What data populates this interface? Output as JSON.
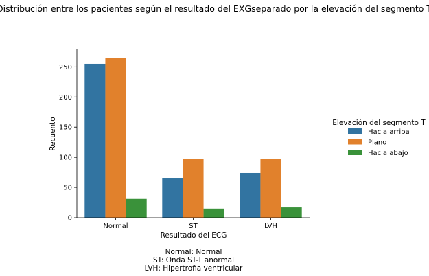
{
  "chart_data": {
    "type": "bar",
    "title": "Distribución entre los pacientes según el resultado del EXGseparado por la elevación del segmento T",
    "xlabel": "Resultado del ECG",
    "ylabel": "Recuento",
    "categories": [
      "Normal",
      "ST",
      "LVH"
    ],
    "series": [
      {
        "name": "Hacia arriba",
        "color": "#3274a1",
        "values": [
          255,
          66,
          74
        ]
      },
      {
        "name": "Plano",
        "color": "#e1812c",
        "values": [
          265,
          97,
          97
        ]
      },
      {
        "name": "Hacia abajo",
        "color": "#3a923a",
        "values": [
          31,
          15,
          17
        ]
      }
    ],
    "ylim": [
      0,
      280
    ],
    "yticks": [
      0,
      50,
      100,
      150,
      200,
      250
    ],
    "legend": {
      "title": "Elevación del segmento T",
      "placement": "right"
    },
    "grid": false,
    "caption": [
      "Normal: Normal",
      "ST: Onda ST-T anormal",
      "LVH: Hipertrofia ventricular"
    ]
  }
}
